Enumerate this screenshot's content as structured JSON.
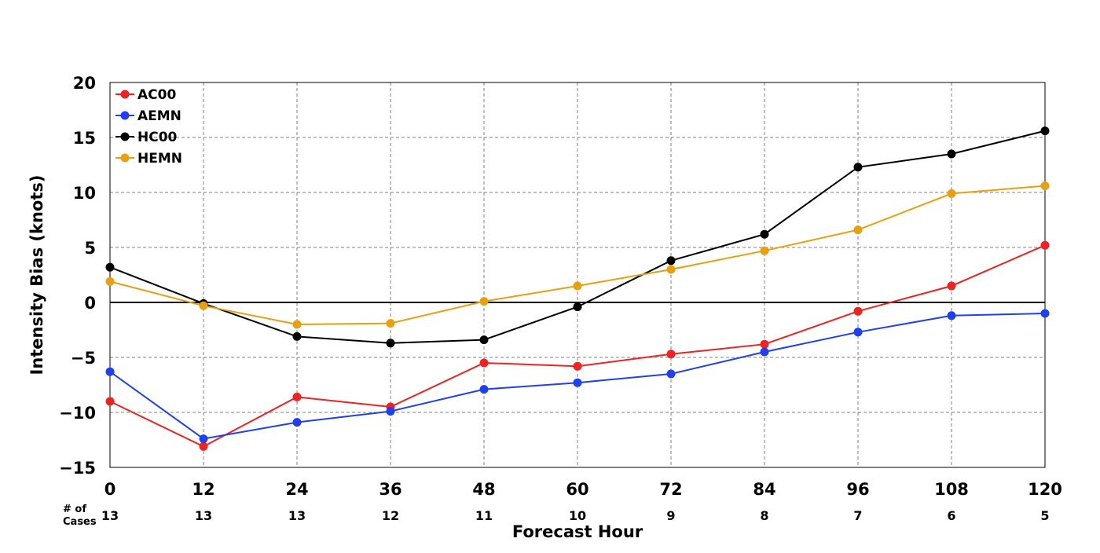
{
  "chart_data": {
    "type": "line",
    "title": "",
    "xlabel": "Forecast Hour",
    "ylabel": "Intensity Bias (knots)",
    "x": [
      0,
      12,
      24,
      36,
      48,
      60,
      72,
      84,
      96,
      108,
      120
    ],
    "x_tick_labels": [
      "0",
      "12",
      "24",
      "36",
      "48",
      "60",
      "72",
      "84",
      "96",
      "108",
      "120"
    ],
    "xlim": [
      0,
      120
    ],
    "ylim": [
      -15,
      20
    ],
    "y_ticks": [
      -15,
      -10,
      -5,
      0,
      5,
      10,
      15,
      20
    ],
    "y_tick_labels": [
      "−15",
      "−10",
      "−5",
      "0",
      "5",
      "10",
      "15",
      "20"
    ],
    "grid": true,
    "zero_line": true,
    "legend_position": "top-left",
    "cases_label_line1": "# of",
    "cases_label_line2": "Cases",
    "cases": [
      "13",
      "13",
      "13",
      "12",
      "11",
      "10",
      "9",
      "8",
      "7",
      "6",
      "5"
    ],
    "series": [
      {
        "name": "AC00",
        "color": "#ee2222",
        "values": [
          -9.0,
          -13.1,
          -8.6,
          -9.5,
          -5.5,
          -5.8,
          -4.7,
          -3.8,
          -0.8,
          1.5,
          5.2
        ]
      },
      {
        "name": "AEMN",
        "color": "#2040f0",
        "values": [
          -6.3,
          -12.4,
          -10.9,
          -9.9,
          -7.9,
          -7.3,
          -6.5,
          -4.5,
          -2.7,
          -1.2,
          -1.0
        ]
      },
      {
        "name": "HC00",
        "color": "#000000",
        "values": [
          3.2,
          -0.1,
          -3.1,
          -3.7,
          -3.4,
          -0.4,
          3.8,
          6.2,
          12.3,
          13.5,
          15.6
        ]
      },
      {
        "name": "HEMN",
        "color": "#e8a010",
        "values": [
          1.9,
          -0.3,
          -2.0,
          -1.9,
          0.1,
          1.5,
          3.0,
          4.7,
          6.6,
          9.9,
          10.6
        ]
      }
    ]
  }
}
